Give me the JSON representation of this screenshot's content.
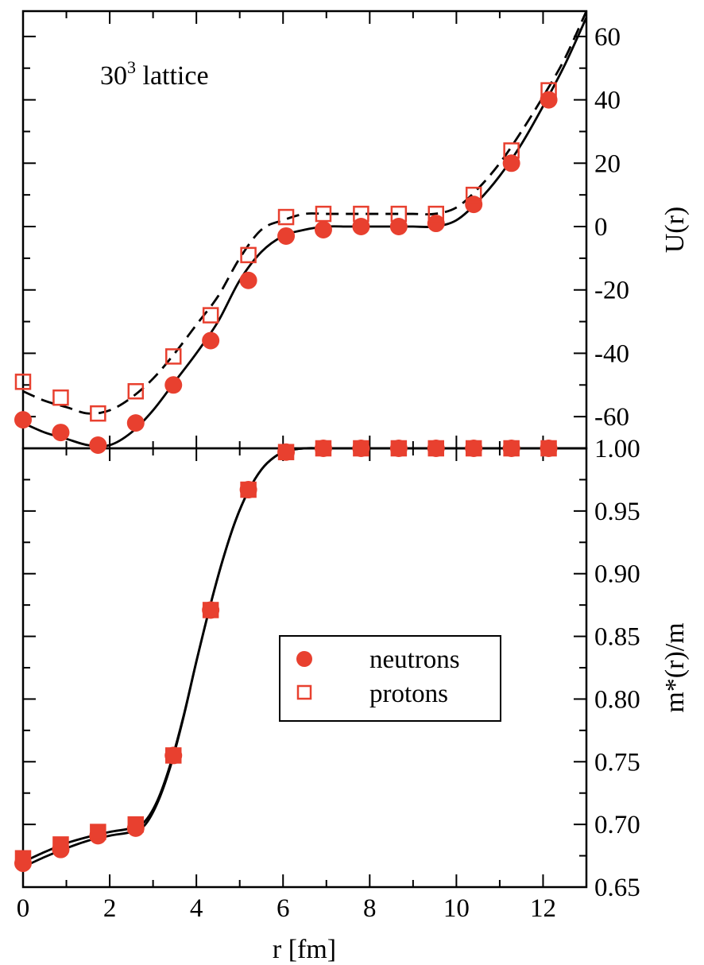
{
  "chart_data": [
    {
      "type": "line",
      "panel": "top",
      "annotation": {
        "base": "30",
        "sup": "3",
        "text": " lattice"
      },
      "ylabel": "U(r)",
      "xlabel": "r [fm]",
      "xlim": [
        0,
        13
      ],
      "ylim": [
        -70,
        68
      ],
      "yticks": [
        -60,
        -40,
        -20,
        0,
        20,
        40,
        60
      ],
      "y_minor_step": 10,
      "series": [
        {
          "label": "neutrons",
          "marker": "filled-circle",
          "x": [
            0.0,
            0.87,
            1.73,
            2.6,
            3.47,
            4.33,
            5.2,
            6.07,
            6.93,
            7.8,
            8.67,
            9.53,
            10.4,
            11.27,
            12.13
          ],
          "y": [
            -61,
            -65,
            -69,
            -62,
            -50,
            -36,
            -17,
            -3,
            -1,
            0,
            0,
            1,
            7,
            20,
            40
          ]
        },
        {
          "label": "protons",
          "marker": "open-square",
          "x": [
            0.0,
            0.87,
            1.73,
            2.6,
            3.47,
            4.33,
            5.2,
            6.07,
            6.93,
            7.8,
            8.67,
            9.53,
            10.4,
            11.27,
            12.13
          ],
          "y": [
            -49,
            -54,
            -59,
            -52,
            -41,
            -28,
            -9,
            3,
            4,
            4,
            4,
            4,
            10,
            24,
            43
          ]
        }
      ],
      "curves": [
        {
          "style": "solid",
          "x": [
            0,
            0.5,
            1.0,
            1.5,
            2.0,
            2.5,
            3.0,
            3.5,
            4.0,
            4.5,
            5.0,
            5.5,
            6.0,
            6.5,
            7.0,
            7.5,
            8.0,
            8.5,
            9.0,
            9.5,
            10.0,
            10.5,
            11.0,
            11.5,
            12.0,
            12.5,
            13.0
          ],
          "y": [
            -62,
            -65,
            -67,
            -69,
            -69,
            -65,
            -58,
            -49,
            -40,
            -30,
            -17,
            -8,
            -3,
            -1,
            0,
            0,
            0,
            0,
            0,
            0,
            2,
            8,
            16,
            26,
            38,
            51,
            66
          ]
        },
        {
          "style": "dashed",
          "x": [
            0,
            0.5,
            1.0,
            1.5,
            2.0,
            2.5,
            3.0,
            3.5,
            4.0,
            4.5,
            5.0,
            5.5,
            6.0,
            6.5,
            7.0,
            7.5,
            8.0,
            8.5,
            9.0,
            9.5,
            10.0,
            10.5,
            11.0,
            11.5,
            12.0,
            12.5,
            13.0
          ],
          "y": [
            -52,
            -55,
            -57,
            -59,
            -58,
            -54,
            -48,
            -40,
            -31,
            -22,
            -10,
            -1,
            2,
            4,
            4,
            4,
            4,
            4,
            4,
            4,
            6,
            12,
            20,
            30,
            41,
            53,
            68
          ]
        }
      ]
    },
    {
      "type": "line",
      "panel": "bottom",
      "ylabel": "m*(r)/m",
      "xlabel": "r [fm]",
      "xlim": [
        0,
        13
      ],
      "ylim": [
        0.65,
        1.0
      ],
      "yticks": [
        "0.65",
        "0.70",
        "0.75",
        "0.80",
        "0.85",
        "0.90",
        "0.95",
        "1.00"
      ],
      "y_minor_step": 0.025,
      "xticks": [
        0,
        2,
        4,
        6,
        8,
        10,
        12
      ],
      "legend": {
        "position": "center-right",
        "entries": [
          "neutrons",
          "protons"
        ]
      },
      "series": [
        {
          "label": "neutrons",
          "marker": "filled-circle",
          "x": [
            0.0,
            0.87,
            1.73,
            2.6,
            3.47,
            4.33,
            5.2,
            6.07,
            6.93,
            7.8,
            8.67,
            9.53,
            10.4,
            11.27,
            12.13
          ],
          "y": [
            0.669,
            0.68,
            0.691,
            0.697,
            0.755,
            0.871,
            0.967,
            0.997,
            1.0,
            1.0,
            1.0,
            1.0,
            1.0,
            1.0,
            1.0
          ]
        },
        {
          "label": "protons",
          "marker": "open-square",
          "x": [
            0.0,
            0.87,
            1.73,
            2.6,
            3.47,
            4.33,
            5.2,
            6.07,
            6.93,
            7.8,
            8.67,
            9.53,
            10.4,
            11.27,
            12.13
          ],
          "y": [
            0.673,
            0.684,
            0.694,
            0.7,
            0.755,
            0.871,
            0.967,
            0.997,
            1.0,
            1.0,
            1.0,
            1.0,
            1.0,
            1.0,
            1.0
          ]
        }
      ],
      "curves": [
        {
          "style": "solid",
          "x": [
            0,
            0.5,
            1.0,
            1.5,
            2.0,
            2.5,
            2.8,
            3.1,
            3.4,
            3.7,
            4.0,
            4.3,
            4.6,
            4.9,
            5.2,
            5.5,
            5.8,
            6.1,
            6.5,
            7.0,
            8.0,
            13.0
          ],
          "y": [
            0.666,
            0.674,
            0.681,
            0.687,
            0.691,
            0.694,
            0.699,
            0.717,
            0.746,
            0.785,
            0.83,
            0.872,
            0.91,
            0.942,
            0.966,
            0.983,
            0.993,
            0.998,
            1.0,
            1.0,
            1.0,
            1.0
          ]
        },
        {
          "style": "solid",
          "x": [
            0,
            0.5,
            1.0,
            1.5,
            2.0,
            2.5,
            2.8,
            3.1,
            3.4,
            3.7,
            4.0,
            4.3,
            4.6,
            4.9,
            5.2,
            5.5,
            5.8,
            6.1,
            6.5,
            7.0,
            8.0,
            13.0
          ],
          "y": [
            0.67,
            0.678,
            0.685,
            0.69,
            0.694,
            0.697,
            0.702,
            0.719,
            0.748,
            0.786,
            0.83,
            0.872,
            0.91,
            0.942,
            0.966,
            0.983,
            0.993,
            0.998,
            1.0,
            1.0,
            1.0,
            1.0
          ]
        }
      ]
    }
  ],
  "colors": {
    "marker": "#e8402f",
    "line": "#000000",
    "axis": "#000000"
  }
}
